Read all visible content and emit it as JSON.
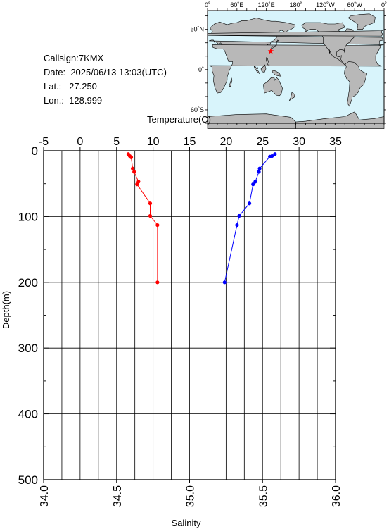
{
  "station": {
    "callsign_label": "Callsign:",
    "callsign": "7KMX",
    "date_label": "Date:",
    "date": "2025/06/13 13:03(UTC)",
    "lat_label": "Lat.:",
    "lat": "27.250",
    "lon_label": "Lon.:",
    "lon": "128.999"
  },
  "map": {
    "top_ticks": [
      "0˚",
      "60˚E",
      "120˚E",
      "180˚",
      "120˚W",
      "60˚W",
      "0˚"
    ],
    "left_ticks": [
      "60˚N",
      "0˚",
      "60˚S"
    ],
    "ocean_color": "#d8f4fb",
    "land_color": "#b8b8b8",
    "marker_color": "#ff0000",
    "marker_lon": 128.999,
    "marker_lat": 27.25
  },
  "chart_data": {
    "type": "line",
    "top_axis": {
      "label": "Temperature(C)",
      "range": [
        -5,
        35
      ],
      "ticks": [
        "-5",
        "0",
        "5",
        "10",
        "15",
        "20",
        "25",
        "30",
        "35"
      ]
    },
    "bottom_axis": {
      "label": "Salinity",
      "range": [
        34.0,
        36.0
      ],
      "ticks": [
        "34.0",
        "34.5",
        "35.0",
        "35.5",
        "36.0"
      ]
    },
    "y_axis": {
      "label": "Depth(m)",
      "range": [
        0,
        500
      ],
      "inverted": true,
      "ticks": [
        "0",
        "100",
        "200",
        "300",
        "400",
        "500"
      ]
    },
    "grid": true,
    "series": [
      {
        "axis": "salinity",
        "color": "#ff0000",
        "points": [
          [
            34.58,
            5
          ],
          [
            34.59,
            8
          ],
          [
            34.6,
            10
          ],
          [
            34.61,
            27
          ],
          [
            34.62,
            32
          ],
          [
            34.65,
            47
          ],
          [
            34.64,
            51
          ],
          [
            34.73,
            80
          ],
          [
            34.73,
            99
          ],
          [
            34.78,
            113
          ],
          [
            34.78,
            200
          ]
        ]
      },
      {
        "axis": "temperature",
        "color": "#0000ff",
        "points": [
          [
            26.7,
            5
          ],
          [
            26.3,
            8
          ],
          [
            26.0,
            9
          ],
          [
            24.6,
            27
          ],
          [
            24.5,
            32
          ],
          [
            24.0,
            47
          ],
          [
            23.7,
            51
          ],
          [
            23.2,
            80
          ],
          [
            21.8,
            99
          ],
          [
            21.5,
            113
          ],
          [
            19.8,
            200
          ]
        ]
      }
    ]
  }
}
